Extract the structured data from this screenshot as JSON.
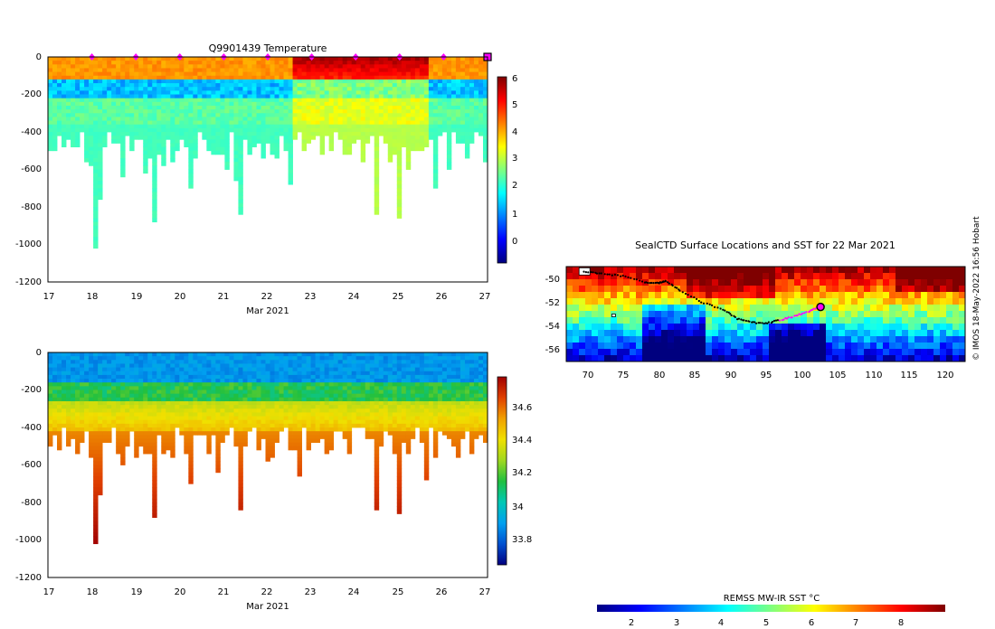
{
  "charts": {
    "temperature": {
      "title": "Q9901439  Temperature",
      "xlabel": "Mar 2021",
      "xticks": [
        "17",
        "18",
        "19",
        "20",
        "21",
        "22",
        "23",
        "24",
        "25",
        "26",
        "27"
      ],
      "yticks": [
        "0",
        "-200",
        "-400",
        "-600",
        "-800",
        "-1000",
        "-1200"
      ],
      "colorbar": {
        "ticks": [
          "6",
          "5",
          "4",
          "3",
          "2",
          "1",
          "0"
        ]
      }
    },
    "salinity": {
      "xlabel": "Mar 2021",
      "xticks": [
        "17",
        "18",
        "19",
        "20",
        "21",
        "22",
        "23",
        "24",
        "25",
        "26",
        "27"
      ],
      "yticks": [
        "0",
        "-200",
        "-400",
        "-600",
        "-800",
        "-1000",
        "-1200"
      ],
      "colorbar": {
        "ticks": [
          "34.6",
          "34.4",
          "34.2",
          "34",
          "33.8"
        ]
      }
    },
    "map": {
      "title": "SealCTD Surface Locations and SST for 22 Mar 2021",
      "xticks": [
        "70",
        "75",
        "80",
        "85",
        "90",
        "95",
        "100",
        "105",
        "110",
        "115",
        "120"
      ],
      "yticks": [
        "-50",
        "-52",
        "-54",
        "-56"
      ],
      "colorbar_label": "REMSS MW-IR SST °C",
      "colorbar_ticks": [
        "2",
        "3",
        "4",
        "5",
        "6",
        "7",
        "8"
      ]
    }
  },
  "credit": "© IMOS 18-May-2022 16:56 Hobart",
  "colors": {
    "jet": [
      "#00007f",
      "#0000ff",
      "#007fff",
      "#00ffff",
      "#7fff7f",
      "#ffff00",
      "#ff7f00",
      "#ff0000",
      "#7f0000"
    ],
    "parula_like": [
      "#000080",
      "#0050d0",
      "#00a0f0",
      "#00c8b4",
      "#20c040",
      "#a0d820",
      "#f0e000",
      "#f0a000",
      "#e04000",
      "#a00000"
    ],
    "marker": "#ff00ff"
  },
  "chart_data": [
    {
      "type": "heatmap",
      "title": "Q9901439  Temperature",
      "xlabel": "Mar 2021",
      "ylabel": "",
      "xlim": [
        17,
        27
      ],
      "ylim": [
        -1200,
        0
      ],
      "colorbar_range": [
        -1,
        6
      ],
      "units": "°C",
      "surface_markers_x": [
        18,
        19,
        20,
        21,
        22,
        23,
        24,
        25,
        26
      ],
      "profile_max_depth_examples": [
        {
          "x": 18.0,
          "depth": -1020
        },
        {
          "x": 18.1,
          "depth": -750
        },
        {
          "x": 19.4,
          "depth": -870
        },
        {
          "x": 20.2,
          "depth": -700
        },
        {
          "x": 21.3,
          "depth": -835
        },
        {
          "x": 24.4,
          "depth": -835
        },
        {
          "x": 24.9,
          "depth": -860
        },
        {
          "x": 27.0,
          "depth": -760
        }
      ],
      "depth_structure": [
        {
          "depth_range": [
            0,
            -130
          ],
          "value_approx": 4.0
        },
        {
          "depth_range": [
            -130,
            -220
          ],
          "value_approx": 1.0
        },
        {
          "depth_range": [
            -220,
            -400
          ],
          "value_approx": 2.2
        },
        {
          "depth_range": [
            -400,
            -1020
          ],
          "value_approx": 2.0
        }
      ]
    },
    {
      "type": "heatmap",
      "title": "",
      "xlabel": "Mar 2021",
      "ylabel": "",
      "xlim": [
        17,
        27
      ],
      "ylim": [
        -1200,
        0
      ],
      "colorbar_range": [
        33.7,
        34.75
      ],
      "units": "salinity",
      "depth_structure": [
        {
          "depth_range": [
            0,
            -150
          ],
          "value_approx": 33.95
        },
        {
          "depth_range": [
            -150,
            -250
          ],
          "value_approx": 34.15
        },
        {
          "depth_range": [
            -250,
            -400
          ],
          "value_approx": 34.4
        },
        {
          "depth_range": [
            -400,
            -1020
          ],
          "value_approx": 34.65
        }
      ]
    },
    {
      "type": "heatmap",
      "title": "SealCTD Surface Locations and SST for 22 Mar 2021",
      "xlabel": "",
      "ylabel": "",
      "xlim": [
        67,
        123
      ],
      "ylim": [
        -57,
        -49
      ],
      "colorbar_range": [
        1.3,
        8.9
      ],
      "units": "°C",
      "track_lon_lat": [
        [
          69.5,
          -49.4
        ],
        [
          72,
          -49.6
        ],
        [
          75,
          -49.8
        ],
        [
          78,
          -50.3
        ],
        [
          80,
          -50.4
        ],
        [
          81,
          -50.2
        ],
        [
          83,
          -51.0
        ],
        [
          86,
          -52.0
        ],
        [
          89,
          -52.6
        ],
        [
          91,
          -53.4
        ],
        [
          93,
          -53.7
        ],
        [
          95,
          -53.8
        ],
        [
          97,
          -53.5
        ],
        [
          99,
          -53.2
        ],
        [
          101,
          -52.8
        ],
        [
          102.5,
          -52.4
        ]
      ],
      "current_position": [
        102.7,
        -52.4
      ]
    }
  ]
}
